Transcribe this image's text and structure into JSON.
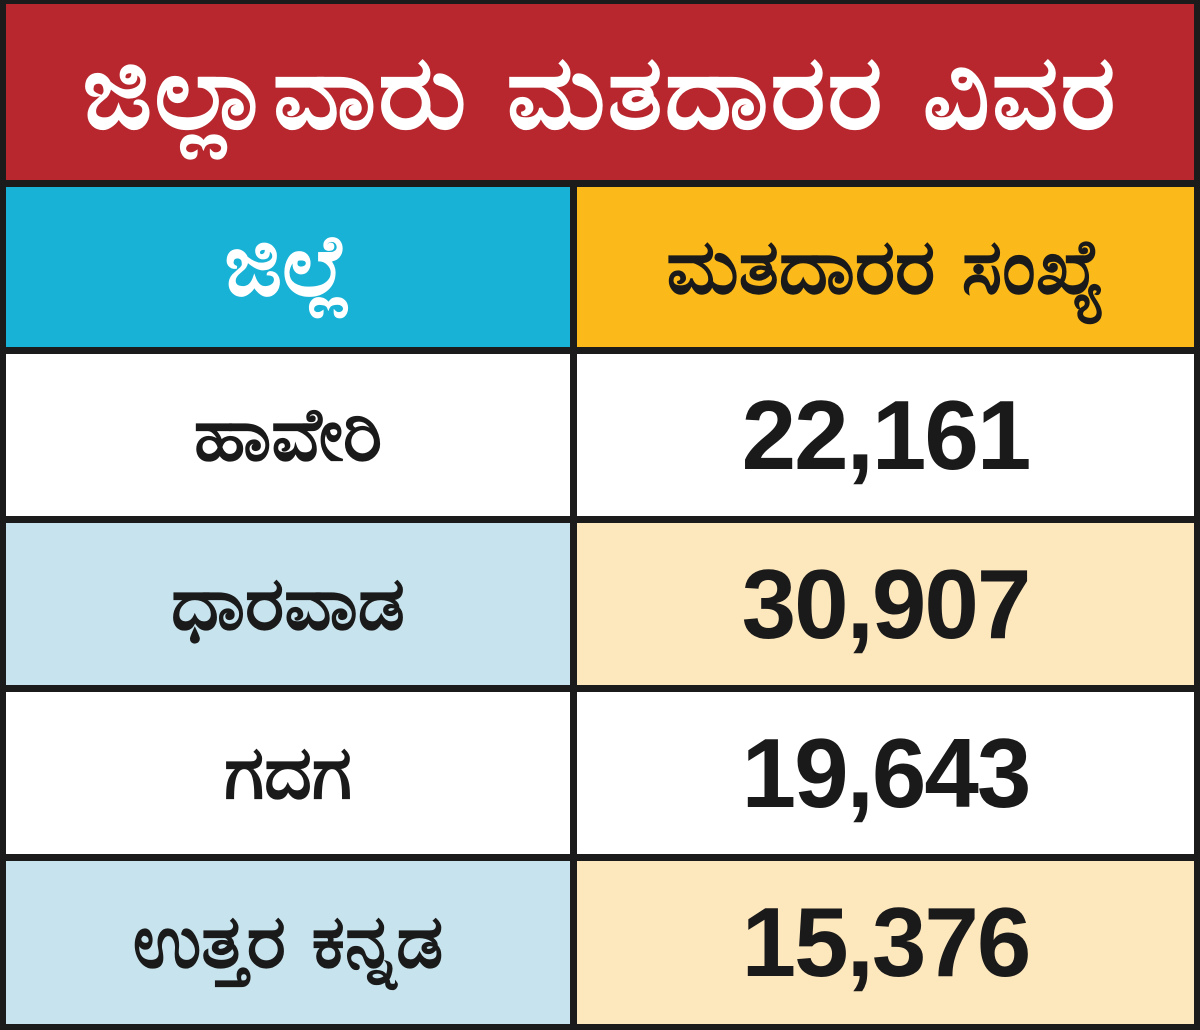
{
  "chart_data": {
    "type": "table",
    "title": "ಜಿಲ್ಲಾವಾರು ಮತದಾರರ ವಿವರ",
    "columns": [
      "ಜಿಲ್ಲೆ",
      "ಮತದಾರರ ಸಂಖ್ಯೆ"
    ],
    "rows": [
      {
        "district": "ಹಾವೇರಿ",
        "voters": "22,161"
      },
      {
        "district": "ಧಾರವಾಡ",
        "voters": "30,907"
      },
      {
        "district": "ಗದಗ",
        "voters": "19,643"
      },
      {
        "district": "ಉತ್ತರ ಕನ್ನಡ",
        "voters": "15,376"
      }
    ]
  },
  "colors": {
    "title_bg": "#b8262e",
    "district_header_bg": "#17b2d6",
    "count_header_bg": "#fcba1a",
    "odd_row_bg": "#ffffff",
    "even_row_left_bg": "#c7e4ee",
    "even_row_right_bg": "#fde7bd",
    "border": "#1b1b1b"
  }
}
